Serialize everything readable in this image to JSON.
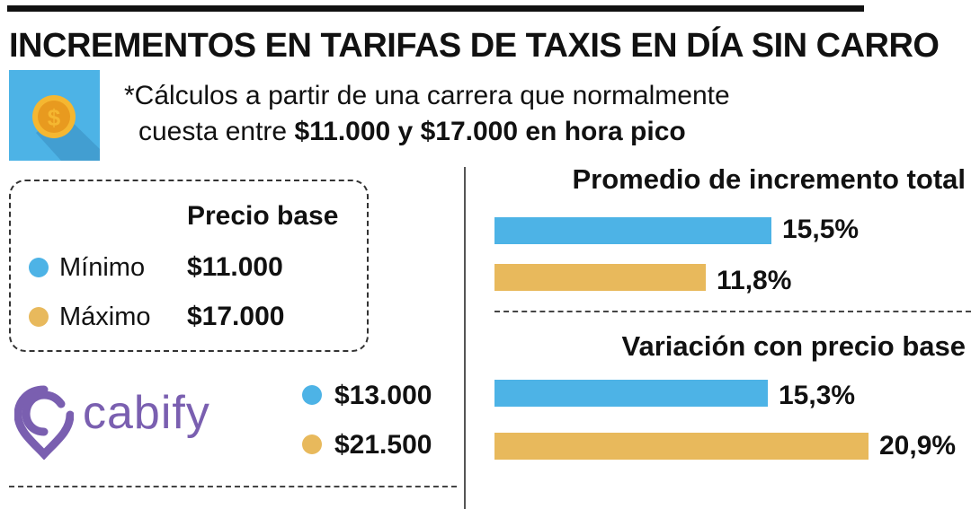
{
  "title": "INCREMENTOS EN TARIFAS DE TAXIS EN DÍA SIN CARRO",
  "note": {
    "line1": "*Cálculos a partir de una carrera que normalmente",
    "line2_prefix": "cuesta entre ",
    "line2_bold": "$11.000 y $17.000 en hora pico"
  },
  "legend": {
    "header": "Precio base",
    "items": [
      {
        "label": "Mínimo",
        "value": "$11.000",
        "color": "#4db3e6"
      },
      {
        "label": "Máximo",
        "value": "$17.000",
        "color": "#e8b95c"
      }
    ]
  },
  "cabify": {
    "brand": "cabify",
    "prices": [
      {
        "value": "$13.000",
        "color": "#4db3e6"
      },
      {
        "value": "$21.500",
        "color": "#e8b95c"
      }
    ]
  },
  "colors": {
    "blue": "#4db3e6",
    "gold": "#e8b95c",
    "brand": "#7a5fb0",
    "coin": "#f5b731"
  },
  "icons": {
    "coin": "dollar-coin-icon",
    "brand_logo": "cabify-logo-icon"
  },
  "chart_data": [
    {
      "type": "bar",
      "orientation": "horizontal",
      "title": "Promedio de incremento total",
      "series": [
        {
          "value": 15.5,
          "label": "15,5%",
          "color": "#4db3e6"
        },
        {
          "value": 11.8,
          "label": "11,8%",
          "color": "#e8b95c"
        }
      ]
    },
    {
      "type": "bar",
      "orientation": "horizontal",
      "title": "Variación con precio base",
      "series": [
        {
          "value": 15.3,
          "label": "15,3%",
          "color": "#4db3e6"
        },
        {
          "value": 20.9,
          "label": "20,9%",
          "color": "#e8b95c"
        }
      ]
    }
  ]
}
